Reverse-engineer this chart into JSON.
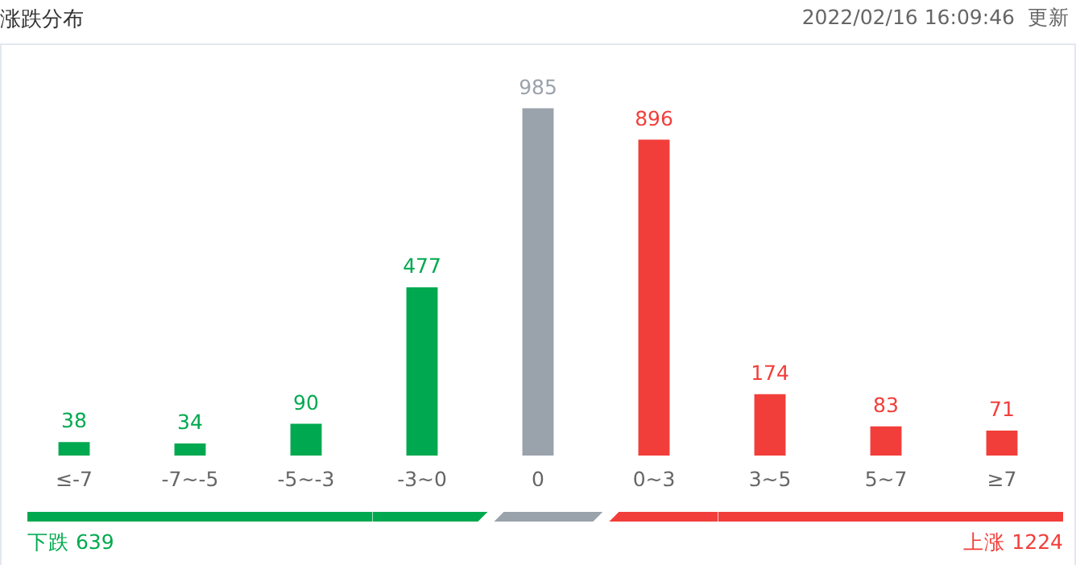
{
  "chart_data": {
    "type": "bar",
    "title": "涨跌分布",
    "subtitle": "2022/02/16 16:09:46",
    "categories": [
      "≤-7",
      "-7~-5",
      "-5~-3",
      "-3~0",
      "0",
      "0~3",
      "3~5",
      "5~7",
      "≥7"
    ],
    "values": [
      38,
      34,
      90,
      477,
      985,
      896,
      174,
      83,
      71
    ],
    "colors": [
      "#00a94f",
      "#00a94f",
      "#00a94f",
      "#00a94f",
      "#9aa2ab",
      "#f23e3a",
      "#f23e3a",
      "#f23e3a",
      "#f23e3a"
    ],
    "data_labels": true,
    "grid": false,
    "legend": false,
    "annotations": [
      "更新",
      "下跌 639",
      "上涨 1224"
    ]
  }
}
